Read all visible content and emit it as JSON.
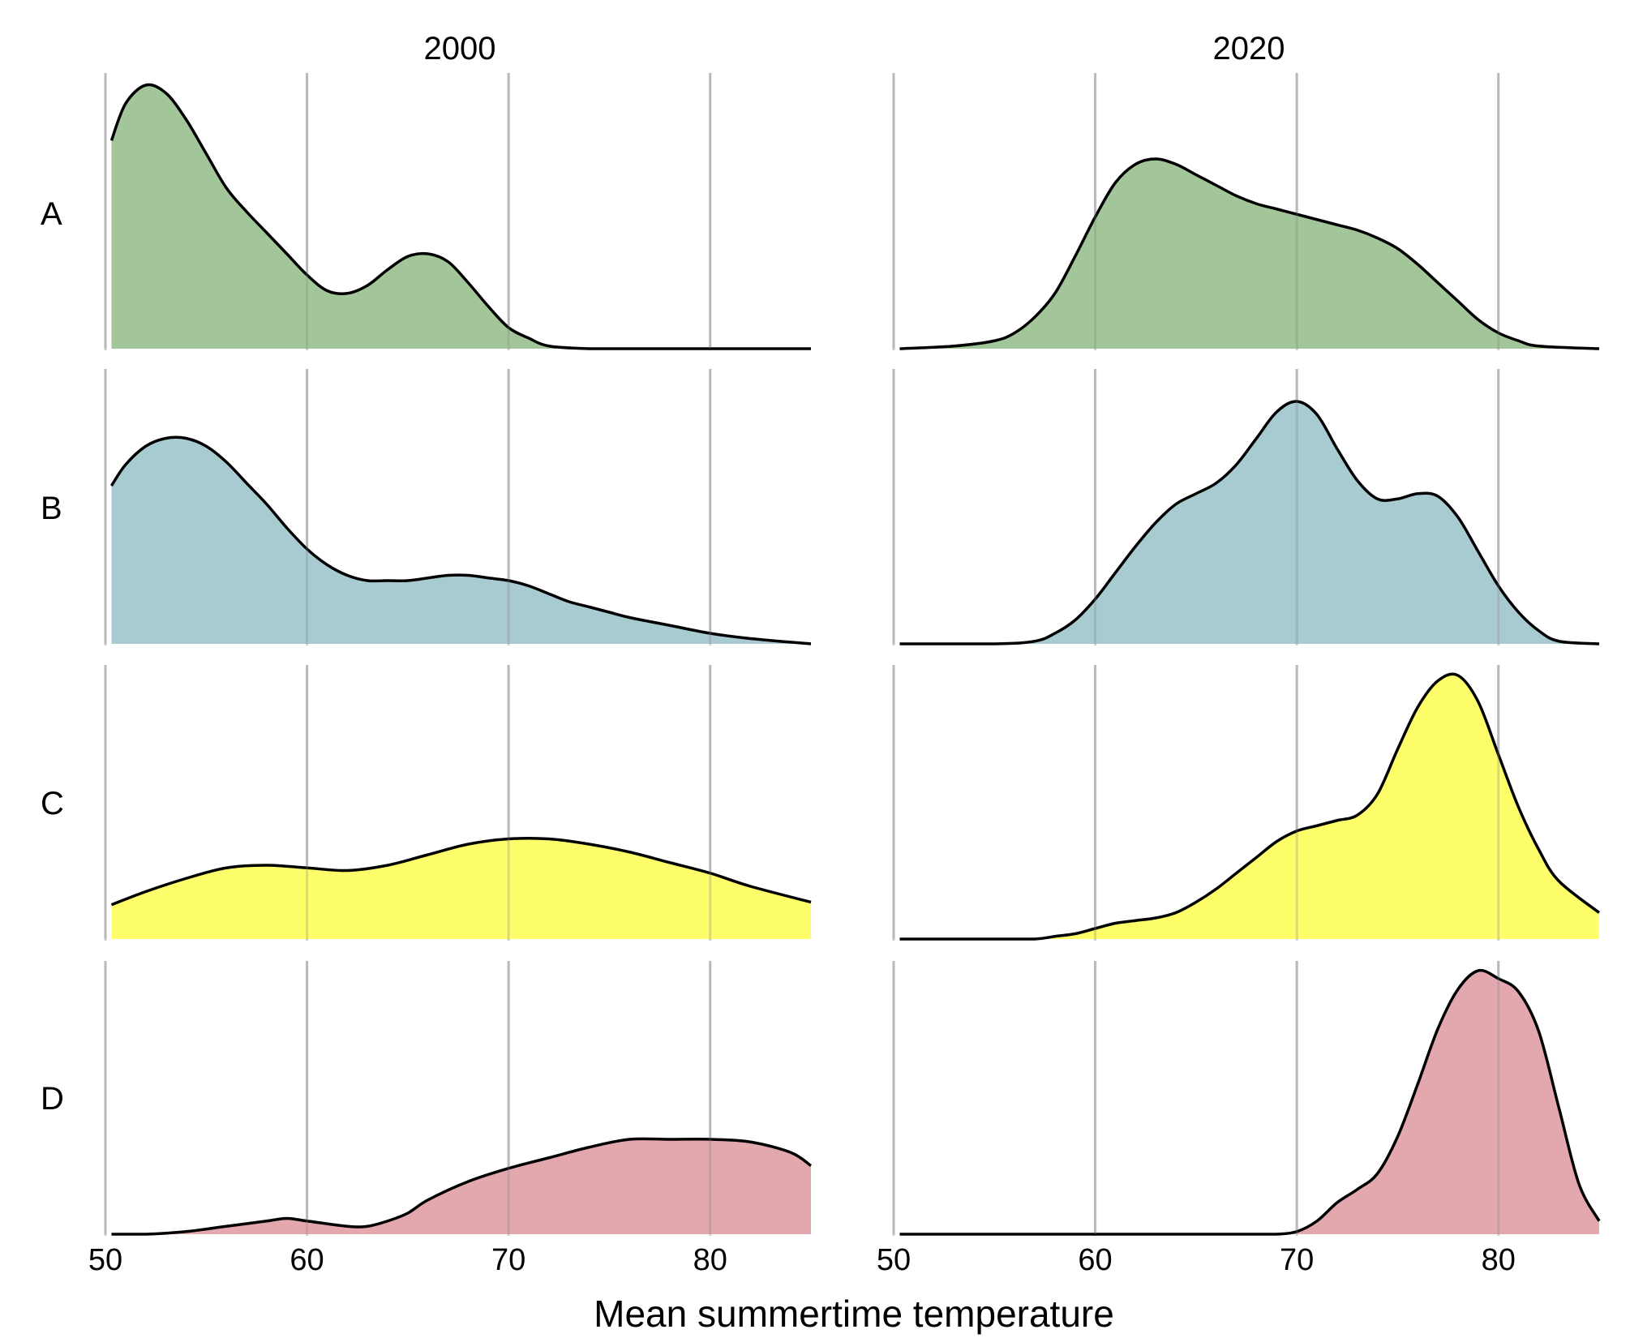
{
  "chart_data": {
    "type": "area",
    "title": "",
    "xlabel": "Mean summertime temperature",
    "ylabel": "",
    "xlim": [
      50,
      85
    ],
    "x_ticks": [
      50,
      60,
      70,
      80
    ],
    "grid": "vertical",
    "legend": "none",
    "columns": [
      "2000",
      "2020"
    ],
    "rows": [
      "A",
      "B",
      "C",
      "D"
    ],
    "colors": {
      "A": "#a3c59a",
      "B": "#a8cad1",
      "C": "#fefd6a",
      "D": "#e3a7ae"
    },
    "panels": [
      {
        "row": "A",
        "column": "2000",
        "x": [
          50.3,
          51,
          52,
          53,
          54,
          55,
          56,
          57,
          58,
          59,
          60,
          61,
          62,
          63,
          64,
          65,
          66,
          67,
          68,
          69,
          70,
          71,
          72,
          74,
          76,
          80,
          85
        ],
        "y": [
          0.79,
          0.93,
          1.0,
          0.97,
          0.87,
          0.74,
          0.61,
          0.52,
          0.44,
          0.36,
          0.28,
          0.22,
          0.21,
          0.24,
          0.3,
          0.35,
          0.36,
          0.33,
          0.25,
          0.16,
          0.08,
          0.04,
          0.01,
          0.0,
          0.0,
          0.0,
          0.0
        ]
      },
      {
        "row": "A",
        "column": "2020",
        "x": [
          50.3,
          53,
          55,
          56,
          57,
          58,
          59,
          60,
          61,
          62,
          63,
          64,
          65,
          66,
          67,
          68,
          69,
          70,
          71,
          72,
          73,
          74,
          75,
          76,
          77,
          78,
          79,
          80,
          81,
          82,
          85
        ],
        "y": [
          0.0,
          0.01,
          0.03,
          0.06,
          0.12,
          0.21,
          0.35,
          0.5,
          0.63,
          0.7,
          0.72,
          0.7,
          0.66,
          0.62,
          0.58,
          0.55,
          0.53,
          0.51,
          0.49,
          0.47,
          0.45,
          0.42,
          0.38,
          0.32,
          0.25,
          0.18,
          0.11,
          0.06,
          0.03,
          0.01,
          0.0
        ]
      },
      {
        "row": "B",
        "column": "2000",
        "x": [
          50.3,
          51,
          52,
          53,
          54,
          55,
          56,
          57,
          58,
          59,
          60,
          61,
          62,
          63,
          64,
          65,
          66,
          67,
          68,
          69,
          70,
          71,
          72,
          73,
          74,
          75,
          76,
          78,
          80,
          82,
          85
        ],
        "y": [
          0.6,
          0.68,
          0.75,
          0.78,
          0.78,
          0.75,
          0.69,
          0.61,
          0.53,
          0.44,
          0.36,
          0.3,
          0.26,
          0.24,
          0.24,
          0.24,
          0.25,
          0.26,
          0.26,
          0.25,
          0.24,
          0.22,
          0.19,
          0.16,
          0.14,
          0.12,
          0.1,
          0.07,
          0.04,
          0.02,
          0.0
        ]
      },
      {
        "row": "B",
        "column": "2020",
        "x": [
          50.3,
          55,
          57,
          58,
          59,
          60,
          61,
          62,
          63,
          64,
          65,
          66,
          67,
          68,
          69,
          70,
          71,
          72,
          73,
          74,
          75,
          76,
          77,
          78,
          79,
          80,
          81,
          82,
          83,
          85
        ],
        "y": [
          0.0,
          0.0,
          0.01,
          0.04,
          0.09,
          0.17,
          0.27,
          0.37,
          0.46,
          0.53,
          0.57,
          0.61,
          0.68,
          0.78,
          0.88,
          0.92,
          0.87,
          0.74,
          0.62,
          0.55,
          0.55,
          0.57,
          0.56,
          0.48,
          0.35,
          0.22,
          0.12,
          0.05,
          0.01,
          0.0
        ]
      },
      {
        "row": "C",
        "column": "2000",
        "x": [
          50.3,
          52,
          54,
          56,
          58,
          60,
          62,
          64,
          66,
          68,
          70,
          72,
          74,
          76,
          78,
          80,
          82,
          85
        ],
        "y": [
          0.13,
          0.18,
          0.23,
          0.27,
          0.28,
          0.27,
          0.26,
          0.28,
          0.32,
          0.36,
          0.38,
          0.38,
          0.36,
          0.33,
          0.29,
          0.25,
          0.2,
          0.14
        ]
      },
      {
        "row": "C",
        "column": "2020",
        "x": [
          50.3,
          55,
          57,
          58,
          59,
          60,
          61,
          62,
          63,
          64,
          65,
          66,
          67,
          68,
          69,
          70,
          71,
          72,
          73,
          74,
          75,
          76,
          77,
          78,
          79,
          80,
          81,
          82,
          83,
          85
        ],
        "y": [
          0.0,
          0.0,
          0.0,
          0.01,
          0.02,
          0.04,
          0.06,
          0.07,
          0.08,
          0.1,
          0.14,
          0.19,
          0.25,
          0.31,
          0.37,
          0.41,
          0.43,
          0.45,
          0.47,
          0.55,
          0.72,
          0.88,
          0.98,
          1.0,
          0.9,
          0.7,
          0.5,
          0.34,
          0.22,
          0.1
        ]
      },
      {
        "row": "D",
        "column": "2000",
        "x": [
          50.3,
          52,
          54,
          56,
          58,
          59,
          60,
          62,
          63,
          64,
          65,
          66,
          68,
          70,
          72,
          74,
          76,
          78,
          80,
          82,
          84,
          85
        ],
        "y": [
          0.0,
          0.0,
          0.01,
          0.03,
          0.05,
          0.06,
          0.05,
          0.03,
          0.03,
          0.05,
          0.08,
          0.13,
          0.2,
          0.25,
          0.29,
          0.33,
          0.36,
          0.36,
          0.36,
          0.35,
          0.31,
          0.26
        ]
      },
      {
        "row": "D",
        "column": "2020",
        "x": [
          50.3,
          60,
          65,
          68,
          69,
          70,
          71,
          72,
          73,
          74,
          75,
          76,
          77,
          78,
          79,
          80,
          81,
          82,
          83,
          84,
          85
        ],
        "y": [
          0.0,
          0.0,
          0.0,
          0.0,
          0.0,
          0.01,
          0.05,
          0.12,
          0.17,
          0.23,
          0.37,
          0.57,
          0.78,
          0.93,
          1.0,
          0.97,
          0.92,
          0.77,
          0.48,
          0.19,
          0.05
        ]
      }
    ]
  }
}
